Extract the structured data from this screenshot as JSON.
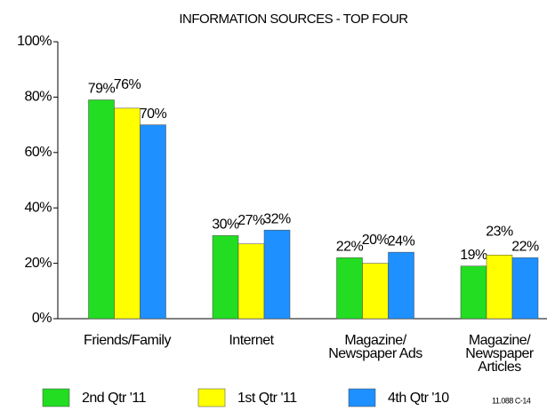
{
  "chart_data": {
    "type": "bar",
    "title": "INFORMATION SOURCES - TOP FOUR",
    "categories": [
      "Friends/Family",
      "Internet",
      "Magazine/\nNewspaper Ads",
      "Magazine/\nNewspaper\nArticles"
    ],
    "series": [
      {
        "name": "2nd Qtr '11",
        "color": "#22dd22",
        "values": [
          79,
          30,
          22,
          19
        ],
        "value_labels": [
          "79%",
          "30%",
          "22%",
          "19%"
        ]
      },
      {
        "name": "1st Qtr '11",
        "color": "#ffff00",
        "values": [
          76,
          27,
          20,
          23
        ],
        "value_labels": [
          "76%",
          "27%",
          "20%",
          "23%"
        ]
      },
      {
        "name": "4th Qtr '10",
        "color": "#1e90ff",
        "values": [
          70,
          32,
          24,
          22
        ],
        "value_labels": [
          "70%",
          "32%",
          "24%",
          "22%"
        ]
      }
    ],
    "ylim": [
      0,
      100
    ],
    "yticks": [
      {
        "value": 0,
        "label": "0%"
      },
      {
        "value": 20,
        "label": "20%"
      },
      {
        "value": 40,
        "label": "40%"
      },
      {
        "value": 60,
        "label": "60%"
      },
      {
        "value": 80,
        "label": "80%"
      },
      {
        "value": 100,
        "label": "100%"
      }
    ],
    "legend": "bottom",
    "footnote": "11.088 C-14"
  }
}
